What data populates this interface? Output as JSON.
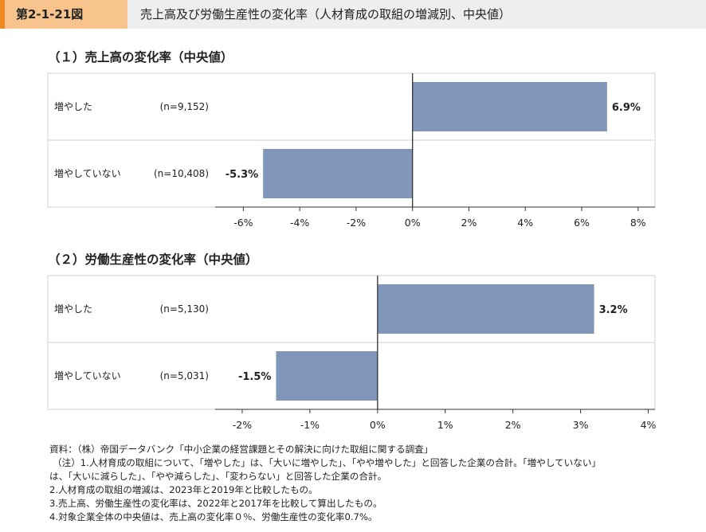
{
  "header": {
    "figure_number": "第2-1-21図",
    "title": "売上高及び労働生産性の変化率（人材育成の取組の増減別、中央値）"
  },
  "chart_data": [
    {
      "type": "bar",
      "orientation": "horizontal",
      "title": "（１）売上高の変化率（中央値）",
      "categories": [
        "増やした",
        "増やしていない"
      ],
      "sample_sizes": [
        "(n=9,152)",
        "(n=10,408)"
      ],
      "values": [
        6.9,
        -5.3
      ],
      "value_labels": [
        "6.9%",
        "-5.3%"
      ],
      "xlim": [
        -7,
        8.6
      ],
      "ticks": [
        -6,
        -4,
        -2,
        0,
        2,
        4,
        6,
        8
      ],
      "tick_labels": [
        "-6%",
        "-4%",
        "-2%",
        "0%",
        "2%",
        "4%",
        "6%",
        "8%"
      ],
      "bar_color": "#8097ba",
      "grid": false
    },
    {
      "type": "bar",
      "orientation": "horizontal",
      "title": "（２）労働生産性の変化率（中央値）",
      "categories": [
        "増やした",
        "増やしていない"
      ],
      "sample_sizes": [
        "(n=5,130)",
        "(n=5,031)"
      ],
      "values": [
        3.2,
        -1.5
      ],
      "value_labels": [
        "3.2%",
        "-1.5%"
      ],
      "xlim": [
        -2.4,
        4.1
      ],
      "ticks": [
        -2,
        -1,
        0,
        1,
        2,
        3,
        4
      ],
      "tick_labels": [
        "-2%",
        "-1%",
        "0%",
        "1%",
        "2%",
        "3%",
        "4%"
      ],
      "bar_color": "#8097ba",
      "grid": false
    }
  ],
  "notes": [
    "資料：（株）帝国データバンク「中小企業の経営課題とその解決に向けた取組に関する調査」",
    "（注）1.人材育成の取組について、「増やした」は、「大いに増やした」、「やや増やした」と回答した企業の合計。「増やしていない」",
    "は、「大いに減らした」、「やや減らした」、「変わらない」と回答した企業の合計。",
    "2.人材育成の取組の増減は、2023年と2019年と比較したもの。",
    "3.売上高、労働生産性の変化率は、2022年と2017年を比較して算出したもの。",
    "4.対象企業全体の中央値は、売上高の変化率０％、労働生産性の変化率0.7%。"
  ]
}
